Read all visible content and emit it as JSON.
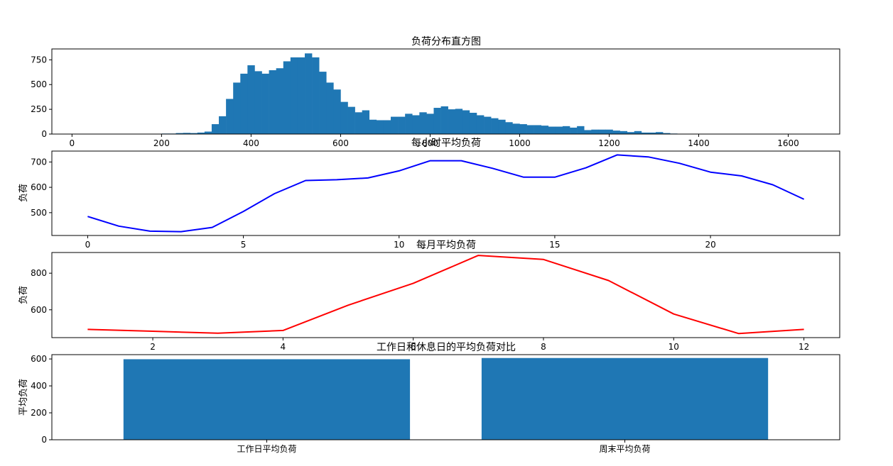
{
  "colors": {
    "bar": "#1f77b4",
    "hourly_line": "#0000ff",
    "monthly_line": "#ff0000"
  },
  "chart_data": [
    {
      "type": "bar",
      "title": "负荷分布直方图",
      "xlabel": "",
      "ylabel": "",
      "xlim": [
        -45,
        1715
      ],
      "ylim": [
        0,
        860
      ],
      "xticks": [
        0,
        200,
        400,
        600,
        800,
        1000,
        1200,
        1400,
        1600
      ],
      "yticks": [
        0,
        250,
        500,
        750
      ],
      "bin_width": 16,
      "bin_edges_start": 200,
      "values": [
        5,
        5,
        10,
        12,
        10,
        15,
        25,
        100,
        180,
        355,
        520,
        610,
        695,
        635,
        610,
        645,
        665,
        735,
        775,
        775,
        815,
        775,
        630,
        520,
        450,
        325,
        275,
        220,
        240,
        145,
        140,
        140,
        175,
        175,
        205,
        190,
        220,
        205,
        265,
        280,
        250,
        255,
        240,
        215,
        190,
        175,
        160,
        145,
        120,
        105,
        100,
        90,
        90,
        85,
        75,
        75,
        80,
        65,
        80,
        40,
        45,
        45,
        45,
        35,
        30,
        20,
        30,
        15,
        15,
        20,
        10,
        5
      ]
    },
    {
      "type": "line",
      "title": "每小时平均负荷",
      "xlabel": "",
      "ylabel": "负荷",
      "xlim": [
        -1.15,
        24.15
      ],
      "ylim": [
        410,
        743
      ],
      "xticks": [
        0,
        5,
        10,
        15,
        20
      ],
      "yticks": [
        500,
        600,
        700
      ],
      "x": [
        0,
        1,
        2,
        3,
        4,
        5,
        6,
        7,
        8,
        9,
        10,
        11,
        12,
        13,
        14,
        15,
        16,
        17,
        18,
        19,
        20,
        21,
        22,
        23
      ],
      "values": [
        485,
        447,
        427,
        425,
        442,
        505,
        575,
        627,
        630,
        637,
        665,
        705,
        705,
        675,
        640,
        640,
        677,
        728,
        720,
        695,
        660,
        645,
        610,
        553
      ]
    },
    {
      "type": "line",
      "title": "每月平均负荷",
      "xlabel": "",
      "ylabel": "负荷",
      "xlim": [
        0.45,
        12.55
      ],
      "ylim": [
        448,
        913
      ],
      "xticks": [
        2,
        4,
        6,
        8,
        10,
        12
      ],
      "yticks": [
        600,
        800
      ],
      "x": [
        1,
        2,
        3,
        4,
        5,
        6,
        7,
        8,
        9,
        10,
        11,
        12
      ],
      "values": [
        493,
        483,
        472,
        487,
        625,
        745,
        897,
        875,
        760,
        577,
        470,
        493
      ]
    },
    {
      "type": "bar",
      "title": "工作日和休息日的平均负荷对比",
      "xlabel": "",
      "ylabel": "平均负荷",
      "ylim": [
        0,
        632
      ],
      "yticks": [
        0,
        200,
        400,
        600
      ],
      "categories": [
        "工作日平均负荷",
        "周末平均负荷"
      ],
      "values": [
        598,
        607
      ]
    }
  ]
}
